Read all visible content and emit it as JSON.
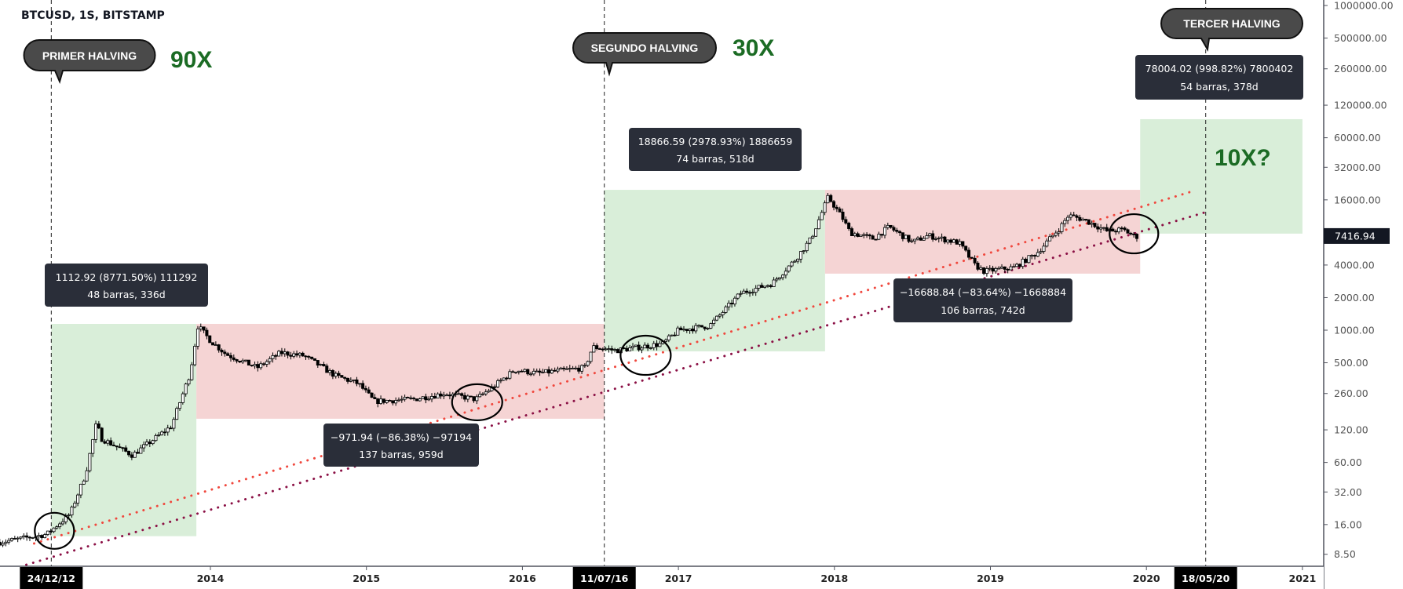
{
  "header": {
    "title": "BTCUSD, 1S, BITSTAMP"
  },
  "colors": {
    "up_fill": "#ffffff",
    "down_fill": "#000000",
    "green_zone": "#d9eed9",
    "red_zone": "#f5d4d4",
    "red_trend": "#f0483e",
    "maroon_trend": "#8b1045",
    "stat_box": "#2a2e39",
    "callout": "#4a4a4a",
    "multiplier": "#1b6b24"
  },
  "callouts": {
    "first": "PRIMER HALVING",
    "second": "SEGUNDO HALVING",
    "third": "TERCER HALVING"
  },
  "multipliers": {
    "first": "90X",
    "second": "30X",
    "third": "10X?"
  },
  "stats": [
    {
      "line1": "1112.92 (8771.50%) 111292",
      "line2": "48 barras, 336d"
    },
    {
      "line1": "−971.94 (−86.38%) −97194",
      "line2": "137 barras, 959d"
    },
    {
      "line1": "18866.59 (2978.93%) 1886659",
      "line2": "74 barras, 518d"
    },
    {
      "line1": "−16688.84 (−83.64%) −1668884",
      "line2": "106 barras, 742d"
    },
    {
      "line1": "78004.02 (998.82%) 7800402",
      "line2": "54 barras, 378d"
    }
  ],
  "price_axis": {
    "scale": "log",
    "ticks": [
      "1000000.00",
      "500000.00",
      "260000.00",
      "120000.00",
      "60000.00",
      "32000.00",
      "16000.00",
      "4000.00",
      "2000.00",
      "1000.00",
      "500.00",
      "260.00",
      "120.00",
      "60.00",
      "32.00",
      "16.00",
      "8.50"
    ],
    "last_price": "7416.94"
  },
  "time_axis": {
    "ticks": [
      {
        "label": "2014",
        "t": 2014
      },
      {
        "label": "2015",
        "t": 2015
      },
      {
        "label": "2016",
        "t": 2016
      },
      {
        "label": "2017",
        "t": 2017
      },
      {
        "label": "2018",
        "t": 2018
      },
      {
        "label": "2019",
        "t": 2019
      },
      {
        "label": "2020",
        "t": 2020
      },
      {
        "label": "2021",
        "t": 2021
      }
    ],
    "highlighted": [
      {
        "label": "24/12/12",
        "t": 2012.98
      },
      {
        "label": "11/07/16",
        "t": 2016.525
      },
      {
        "label": "18/05/20",
        "t": 2020.38
      }
    ]
  },
  "chart_data": {
    "type": "candlestick",
    "title": "BTCUSD, 1S, BITSTAMP",
    "interval": "1 week",
    "yscale": "log",
    "ylim": [
      5,
      1200000
    ],
    "xlim": [
      2012.65,
      2021.2
    ],
    "price_path": [
      [
        2012.65,
        11
      ],
      [
        2012.95,
        13
      ],
      [
        2013.1,
        20
      ],
      [
        2013.2,
        47
      ],
      [
        2013.27,
        140
      ],
      [
        2013.3,
        100
      ],
      [
        2013.5,
        70
      ],
      [
        2013.75,
        130
      ],
      [
        2013.87,
        400
      ],
      [
        2013.92,
        1100
      ],
      [
        2014.0,
        800
      ],
      [
        2014.1,
        600
      ],
      [
        2014.3,
        450
      ],
      [
        2014.45,
        620
      ],
      [
        2014.6,
        580
      ],
      [
        2014.8,
        380
      ],
      [
        2014.95,
        320
      ],
      [
        2015.05,
        220
      ],
      [
        2015.3,
        230
      ],
      [
        2015.5,
        260
      ],
      [
        2015.7,
        230
      ],
      [
        2015.8,
        290
      ],
      [
        2015.95,
        430
      ],
      [
        2016.1,
        400
      ],
      [
        2016.4,
        450
      ],
      [
        2016.45,
        700
      ],
      [
        2016.6,
        650
      ],
      [
        2016.9,
        750
      ],
      [
        2017.0,
        1000
      ],
      [
        2017.2,
        1100
      ],
      [
        2017.4,
        2200
      ],
      [
        2017.6,
        2700
      ],
      [
        2017.75,
        4500
      ],
      [
        2017.85,
        7000
      ],
      [
        2017.96,
        17000
      ],
      [
        2018.05,
        11000
      ],
      [
        2018.1,
        8000
      ],
      [
        2018.25,
        7000
      ],
      [
        2018.35,
        9000
      ],
      [
        2018.5,
        6500
      ],
      [
        2018.6,
        7500
      ],
      [
        2018.8,
        6400
      ],
      [
        2018.9,
        4000
      ],
      [
        2018.96,
        3500
      ],
      [
        2019.15,
        3800
      ],
      [
        2019.3,
        5200
      ],
      [
        2019.45,
        9000
      ],
      [
        2019.5,
        11500
      ],
      [
        2019.6,
        10500
      ],
      [
        2019.75,
        8200
      ],
      [
        2019.85,
        8500
      ],
      [
        2019.93,
        7300
      ],
      [
        2019.95,
        7416.94
      ]
    ],
    "zones": [
      {
        "kind": "green",
        "t0": 2012.98,
        "t1": 2013.91,
        "p0": 12.5,
        "p1": 1143
      },
      {
        "kind": "red",
        "t0": 2013.91,
        "t1": 2016.525,
        "p0": 152,
        "p1": 1143
      },
      {
        "kind": "green",
        "t0": 2016.525,
        "t1": 2017.94,
        "p0": 637,
        "p1": 19800
      },
      {
        "kind": "red",
        "t0": 2017.94,
        "t1": 2019.96,
        "p0": 3330,
        "p1": 19800
      },
      {
        "kind": "green",
        "t0": 2019.96,
        "t1": 2021.0,
        "p0": 7800,
        "p1": 89000
      }
    ],
    "trendlines": [
      {
        "name": "red-trendline",
        "color": "#f0483e",
        "from": [
          2012.87,
          10.7
        ],
        "to": [
          2020.31,
          19500
        ]
      },
      {
        "name": "maroon-trendline",
        "color": "#8b1045",
        "from": [
          2012.82,
          6.8
        ],
        "to": [
          2020.37,
          12200
        ]
      }
    ],
    "circles": [
      {
        "t": 2013.0,
        "p": 14
      },
      {
        "t": 2015.71,
        "p": 216
      },
      {
        "t": 2016.79,
        "p": 586
      },
      {
        "t": 2019.92,
        "p": 7780
      }
    ],
    "halvings": [
      2012.98,
      2016.525,
      2020.38
    ]
  }
}
